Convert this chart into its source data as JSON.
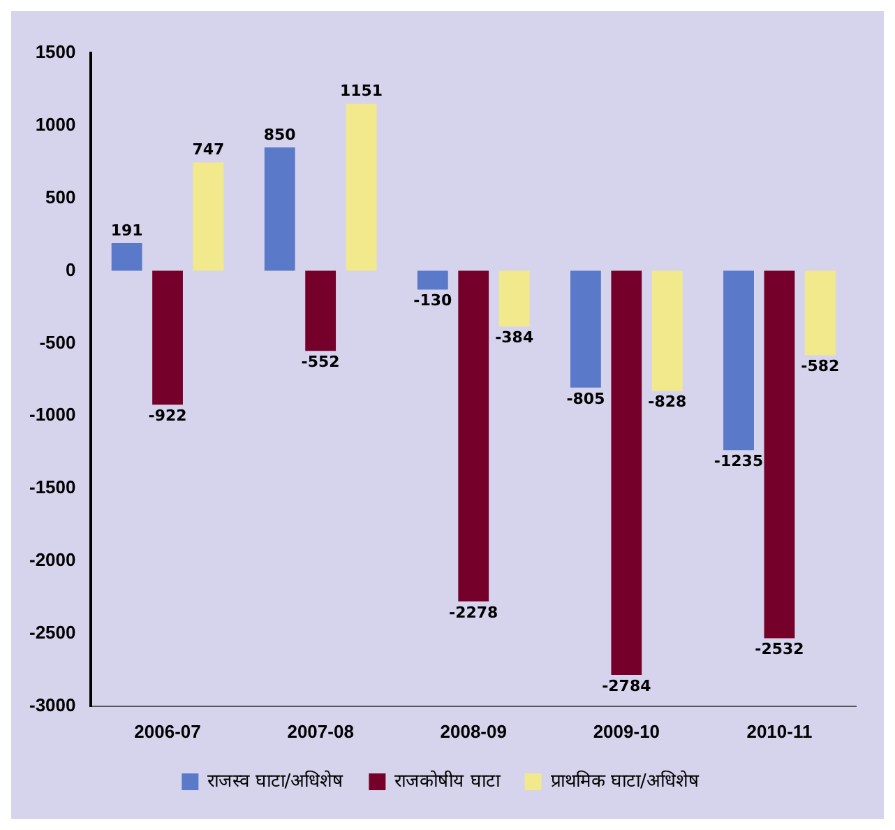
{
  "chart_data": {
    "type": "bar",
    "categories": [
      "2006-07",
      "2007-08",
      "2008-09",
      "2009-10",
      "2010-11"
    ],
    "series": [
      {
        "name": "राजस्व घाटा/अधिशेष",
        "color": "#5b79c9",
        "values": [
          191,
          850,
          -130,
          -805,
          -1235
        ]
      },
      {
        "name": "राजकोषीय घाटा",
        "color": "#75002a",
        "values": [
          -922,
          -552,
          -2278,
          -2784,
          -2532
        ]
      },
      {
        "name": "प्राथमिक घाटा/अधिशेष",
        "color": "#f2e88c",
        "values": [
          747,
          1151,
          -384,
          -828,
          -582
        ]
      }
    ],
    "ylim": [
      -3000,
      1500
    ],
    "yticks": [
      -3000,
      -2500,
      -2000,
      -1500,
      -1000,
      -500,
      0,
      500,
      1000,
      1500
    ],
    "grid": false,
    "legend": "bottom",
    "data_labels": true
  }
}
